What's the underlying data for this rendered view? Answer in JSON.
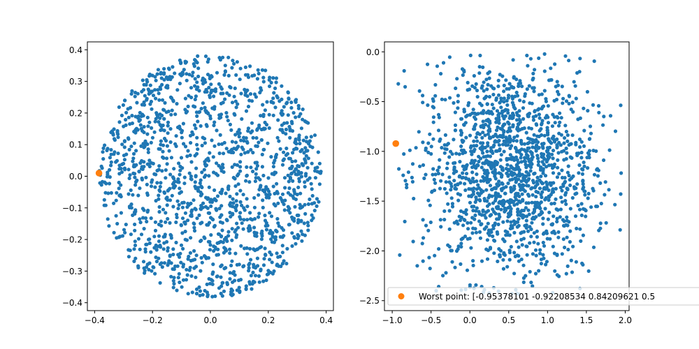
{
  "chart_data": [
    {
      "type": "scatter",
      "title": "",
      "xlabel": "",
      "ylabel": "",
      "xlim": [
        -0.425,
        0.425
      ],
      "ylim": [
        -0.425,
        0.425
      ],
      "grid": false,
      "xticks": [
        -0.4,
        -0.2,
        0.0,
        0.2,
        0.4
      ],
      "xtick_labels": [
        "−0.4",
        "−0.2",
        "0.0",
        "0.2",
        "0.4"
      ],
      "yticks": [
        -0.4,
        -0.3,
        -0.2,
        -0.1,
        0.0,
        0.1,
        0.2,
        0.3,
        0.4
      ],
      "ytick_labels": [
        "−0.4",
        "−0.3",
        "−0.2",
        "−0.1",
        "0.0",
        "0.1",
        "0.2",
        "0.3",
        "0.4"
      ],
      "series": [
        {
          "kind": "cloud",
          "color": "#1f77b4",
          "count": 1500,
          "distribution": "uniform-disk",
          "center": [
            0.0,
            0.0
          ],
          "radius": 0.385
        },
        {
          "kind": "highlight",
          "color": "#ff7f0e",
          "points": [
            [
              -0.385,
              0.01
            ]
          ]
        }
      ]
    },
    {
      "type": "scatter",
      "title": "",
      "xlabel": "",
      "ylabel": "",
      "xlim": [
        -1.1,
        2.05
      ],
      "ylim": [
        -2.6,
        0.1
      ],
      "grid": false,
      "xticks": [
        -1.0,
        -0.5,
        0.0,
        0.5,
        1.0,
        1.5,
        2.0
      ],
      "xtick_labels": [
        "−1.0",
        "−0.5",
        "0.0",
        "0.5",
        "1.0",
        "1.5",
        "2.0"
      ],
      "yticks": [
        -2.5,
        -2.0,
        -1.5,
        -1.0,
        -0.5,
        0.0
      ],
      "ytick_labels": [
        "−2.5",
        "−2.0",
        "−1.5",
        "−1.0",
        "−0.5",
        "0.0"
      ],
      "series": [
        {
          "kind": "cloud",
          "color": "#1f77b4",
          "count": 1500,
          "distribution": "gaussian-ellipse",
          "center": [
            0.5,
            -1.2
          ],
          "sx": 0.55,
          "sy": 0.55,
          "xrange": [
            -0.95,
            1.95
          ],
          "yrange": [
            -2.45,
            0.0
          ]
        },
        {
          "kind": "highlight",
          "color": "#ff7f0e",
          "points": [
            [
              -0.954,
              -0.922
            ]
          ],
          "name": "Worst point: [-0.95378101 -0.92208534  0.84209621  0.5"
        }
      ],
      "legend": {
        "position": "lower-left",
        "entries": [
          "Worst point: [-0.95378101 -0.92208534  0.84209621  0.5"
        ]
      }
    }
  ]
}
